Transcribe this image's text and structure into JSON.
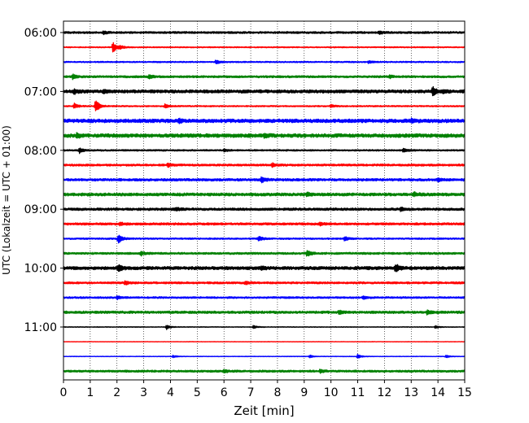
{
  "chart_data": {
    "type": "line",
    "xlabel": "Zeit  [min]",
    "ylabel": "UTC (Lokalzeit = UTC + 01:00)",
    "xlim": [
      0,
      15
    ],
    "xticks": [
      0,
      1,
      2,
      3,
      4,
      5,
      6,
      7,
      8,
      9,
      10,
      11,
      12,
      13,
      14,
      15
    ],
    "xtick_labels": [
      "0",
      "1",
      "2",
      "3",
      "4",
      "5",
      "6",
      "7",
      "8",
      "9",
      "10",
      "11",
      "12",
      "13",
      "14",
      "15"
    ],
    "yticks": [
      {
        "label": "06:00",
        "row": 0
      },
      {
        "label": "07:00",
        "row": 4
      },
      {
        "label": "08:00",
        "row": 8
      },
      {
        "label": "09:00",
        "row": 12
      },
      {
        "label": "10:00",
        "row": 16
      },
      {
        "label": "11:00",
        "row": 20
      }
    ],
    "grid": {
      "x": true,
      "style": "dotted"
    },
    "color_cycle": [
      "#000000",
      "#ff0000",
      "#0000ff",
      "#008000"
    ],
    "traces": [
      {
        "start": "06:00",
        "noise": 0.9,
        "events": [
          [
            1.5,
            1.4
          ],
          [
            11.8,
            1.2
          ]
        ]
      },
      {
        "start": "06:15",
        "noise": 0.5,
        "events": [
          [
            1.85,
            5.5
          ],
          [
            2.1,
            1.6
          ]
        ]
      },
      {
        "start": "06:30",
        "noise": 0.6,
        "events": [
          [
            5.7,
            1.8
          ],
          [
            11.4,
            1.2
          ]
        ]
      },
      {
        "start": "06:45",
        "noise": 0.9,
        "events": [
          [
            0.35,
            2.4
          ],
          [
            3.2,
            2.0
          ],
          [
            12.2,
            1.4
          ]
        ]
      },
      {
        "start": "07:00",
        "noise": 1.4,
        "events": [
          [
            13.8,
            4.5
          ],
          [
            0.4,
            2.0
          ],
          [
            1.5,
            2.0
          ],
          [
            14.2,
            1.6
          ]
        ]
      },
      {
        "start": "07:15",
        "noise": 0.6,
        "events": [
          [
            1.2,
            6.5
          ],
          [
            0.4,
            2.6
          ],
          [
            3.8,
            2.0
          ],
          [
            10.0,
            1.5
          ]
        ]
      },
      {
        "start": "07:30",
        "noise": 1.6,
        "events": [
          [
            4.3,
            1.8
          ],
          [
            13.0,
            1.6
          ]
        ]
      },
      {
        "start": "07:45",
        "noise": 1.6,
        "events": [
          [
            0.5,
            2.2
          ],
          [
            7.5,
            1.6
          ]
        ]
      },
      {
        "start": "08:00",
        "noise": 0.7,
        "events": [
          [
            0.6,
            3.0
          ],
          [
            6.0,
            1.6
          ],
          [
            12.7,
            2.2
          ]
        ]
      },
      {
        "start": "08:15",
        "noise": 0.9,
        "events": [
          [
            3.9,
            1.8
          ],
          [
            7.8,
            1.5
          ]
        ]
      },
      {
        "start": "08:30",
        "noise": 1.1,
        "events": [
          [
            7.4,
            2.6
          ],
          [
            14.0,
            1.5
          ]
        ]
      },
      {
        "start": "08:45",
        "noise": 1.3,
        "events": [
          [
            9.1,
            1.7
          ],
          [
            13.1,
            2.0
          ]
        ]
      },
      {
        "start": "09:00",
        "noise": 1.1,
        "events": [
          [
            4.2,
            1.4
          ],
          [
            12.6,
            1.6
          ]
        ]
      },
      {
        "start": "09:15",
        "noise": 1.0,
        "events": [
          [
            2.1,
            1.6
          ],
          [
            9.6,
            1.4
          ]
        ]
      },
      {
        "start": "09:30",
        "noise": 0.7,
        "events": [
          [
            2.05,
            5.0
          ],
          [
            7.3,
            2.6
          ],
          [
            10.5,
            2.2
          ]
        ]
      },
      {
        "start": "09:45",
        "noise": 0.9,
        "events": [
          [
            9.1,
            3.6
          ],
          [
            2.9,
            1.8
          ]
        ]
      },
      {
        "start": "10:00",
        "noise": 1.4,
        "events": [
          [
            2.05,
            3.2
          ],
          [
            12.4,
            4.2
          ],
          [
            7.4,
            1.6
          ]
        ]
      },
      {
        "start": "10:15",
        "noise": 0.9,
        "events": [
          [
            2.3,
            1.8
          ],
          [
            6.8,
            1.4
          ]
        ]
      },
      {
        "start": "10:30",
        "noise": 0.8,
        "events": [
          [
            2.0,
            1.6
          ],
          [
            11.2,
            1.5
          ]
        ]
      },
      {
        "start": "10:45",
        "noise": 1.1,
        "events": [
          [
            10.3,
            1.6
          ],
          [
            13.6,
            2.2
          ]
        ]
      },
      {
        "start": "11:00",
        "noise": 0.3,
        "events": [
          [
            3.85,
            2.6
          ],
          [
            7.1,
            1.8
          ],
          [
            13.9,
            1.4
          ]
        ]
      },
      {
        "start": "11:15",
        "noise": 0.2,
        "events": []
      },
      {
        "start": "11:30",
        "noise": 0.25,
        "events": [
          [
            11.0,
            2.2
          ],
          [
            9.2,
            1.5
          ],
          [
            4.1,
            1.2
          ],
          [
            14.3,
            1.4
          ]
        ]
      },
      {
        "start": "11:45",
        "noise": 0.9,
        "events": [
          [
            9.6,
            1.7
          ],
          [
            6.0,
            1.4
          ]
        ]
      }
    ]
  }
}
